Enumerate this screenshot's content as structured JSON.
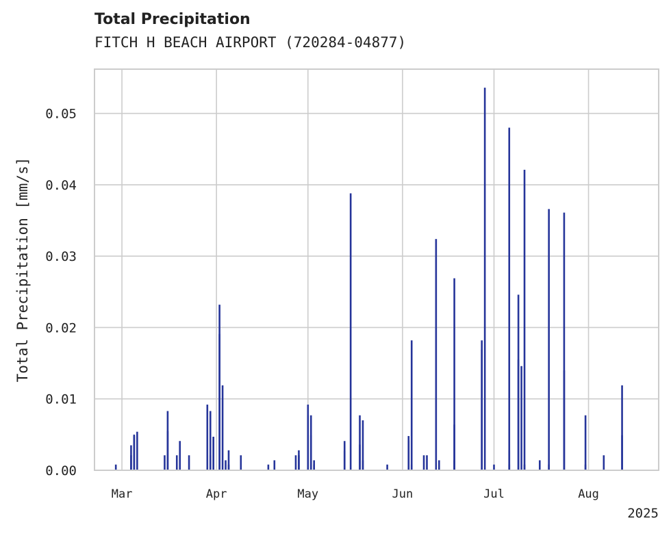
{
  "chart_data": {
    "type": "bar",
    "title": "Total Precipitation",
    "subtitle": "FITCH H BEACH AIRPORT (720284-04877)",
    "xlabel": "",
    "ylabel": "Total Precipitation [mm/s]",
    "ylim": [
      0,
      0.0562
    ],
    "xlim": [
      "2025-02-20",
      "2025-08-24"
    ],
    "y_ticks": [
      "0.00",
      "0.01",
      "0.02",
      "0.03",
      "0.04",
      "0.05"
    ],
    "y_tick_values": [
      0,
      0.01,
      0.02,
      0.03,
      0.04,
      0.05
    ],
    "x_ticks": [
      "Mar",
      "Apr",
      "May",
      "Jun",
      "Jul",
      "Aug"
    ],
    "x_tick_dates": [
      "2025-03-01",
      "2025-04-01",
      "2025-05-01",
      "2025-06-01",
      "2025-07-01",
      "2025-08-01"
    ],
    "x_offset_label": "2025",
    "grid": true,
    "bar_color": "#26359a",
    "x": [
      "2025-02-27",
      "2025-03-04",
      "2025-03-04",
      "2025-03-05",
      "2025-03-05",
      "2025-03-06",
      "2025-03-15",
      "2025-03-16",
      "2025-03-16",
      "2025-03-19",
      "2025-03-20",
      "2025-03-23",
      "2025-03-29",
      "2025-03-30",
      "2025-03-30",
      "2025-03-31",
      "2025-03-31",
      "2025-04-02",
      "2025-04-02",
      "2025-04-03",
      "2025-04-04",
      "2025-04-05",
      "2025-04-05",
      "2025-04-09",
      "2025-04-18",
      "2025-04-20",
      "2025-04-27",
      "2025-04-28",
      "2025-04-28",
      "2025-05-01",
      "2025-05-01",
      "2025-05-02",
      "2025-05-02",
      "2025-05-03",
      "2025-05-03",
      "2025-05-13",
      "2025-05-13",
      "2025-05-15",
      "2025-05-18",
      "2025-05-18",
      "2025-05-19",
      "2025-05-19",
      "2025-05-27",
      "2025-06-03",
      "2025-06-03",
      "2025-06-04",
      "2025-06-04",
      "2025-06-08",
      "2025-06-09",
      "2025-06-12",
      "2025-06-13",
      "2025-06-18",
      "2025-06-18",
      "2025-06-18",
      "2025-06-27",
      "2025-06-27",
      "2025-06-28",
      "2025-07-01",
      "2025-07-06",
      "2025-07-06",
      "2025-07-06",
      "2025-07-09",
      "2025-07-09",
      "2025-07-10",
      "2025-07-11",
      "2025-07-11",
      "2025-07-16",
      "2025-07-19",
      "2025-07-19",
      "2025-07-24",
      "2025-07-24",
      "2025-07-31",
      "2025-07-31",
      "2025-08-06",
      "2025-08-12",
      "2025-08-12"
    ],
    "values": [
      0.0008,
      0.0021,
      0.0035,
      0.0048,
      0.005,
      0.0054,
      0.0021,
      0.0055,
      0.0083,
      0.0021,
      0.0041,
      0.0021,
      0.0092,
      0.0021,
      0.0083,
      0.0047,
      0.0047,
      0.0191,
      0.0232,
      0.0119,
      0.0014,
      0.0028,
      0.0008,
      0.0021,
      0.0008,
      0.0014,
      0.0021,
      0.0028,
      0.0021,
      0.0077,
      0.0092,
      0.0049,
      0.0077,
      0.0014,
      0.0008,
      0.0041,
      0.0027,
      0.0388,
      0.0036,
      0.0077,
      0.007,
      0.0014,
      0.0008,
      0.0042,
      0.0048,
      0.0182,
      0.0008,
      0.0021,
      0.0021,
      0.0324,
      0.0014,
      0.0269,
      0.0064,
      0.0014,
      0.0169,
      0.0182,
      0.0536,
      0.0008,
      0.048,
      0.0028,
      0.0008,
      0.0155,
      0.0246,
      0.0146,
      0.0421,
      0.0008,
      0.0014,
      0.0366,
      0.0008,
      0.0361,
      0.014,
      0.0077,
      0.0008,
      0.0021,
      0.0119,
      0.0049
    ]
  }
}
